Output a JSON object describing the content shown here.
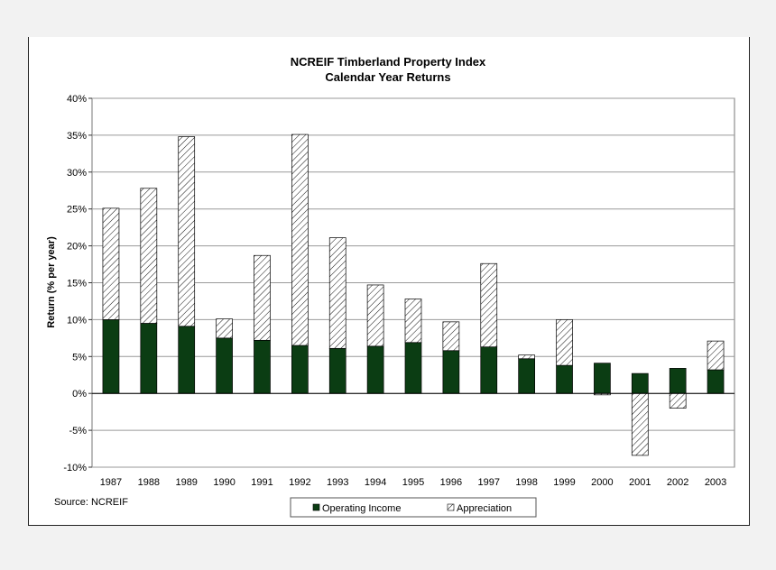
{
  "chart_data": {
    "type": "bar",
    "stacked": true,
    "title": "NCREIF Timberland Property Index",
    "subtitle": "Calendar Year Returns",
    "xlabel": "",
    "ylabel": "Return (% per year)",
    "ylim": [
      -10,
      40
    ],
    "yticks": [
      -10,
      -5,
      0,
      5,
      10,
      15,
      20,
      25,
      30,
      35,
      40
    ],
    "ytick_labels": [
      "-10%",
      "-5%",
      "0%",
      "5%",
      "10%",
      "15%",
      "20%",
      "25%",
      "30%",
      "35%",
      "40%"
    ],
    "grid": true,
    "categories": [
      "1987",
      "1988",
      "1989",
      "1990",
      "1991",
      "1992",
      "1993",
      "1994",
      "1995",
      "1996",
      "1997",
      "1998",
      "1999",
      "2000",
      "2001",
      "2002",
      "2003"
    ],
    "series": [
      {
        "name": "Operating Income",
        "color": "#0b3d13",
        "pattern": "solid",
        "values": [
          10.0,
          9.5,
          9.1,
          7.5,
          7.2,
          6.5,
          6.1,
          6.4,
          6.9,
          5.8,
          6.3,
          4.7,
          3.8,
          4.1,
          2.7,
          3.4,
          3.2
        ]
      },
      {
        "name": "Appreciation",
        "color": "#ffffff",
        "pattern": "hatch",
        "values": [
          15.1,
          18.3,
          25.7,
          2.6,
          11.5,
          28.6,
          15.0,
          8.3,
          5.9,
          3.9,
          11.3,
          0.5,
          6.2,
          -0.2,
          -8.4,
          -2.0,
          3.9
        ]
      }
    ],
    "legend": [
      "Operating Income",
      "Appreciation"
    ],
    "legend_position": "bottom-center",
    "source": "Source: NCREIF"
  }
}
